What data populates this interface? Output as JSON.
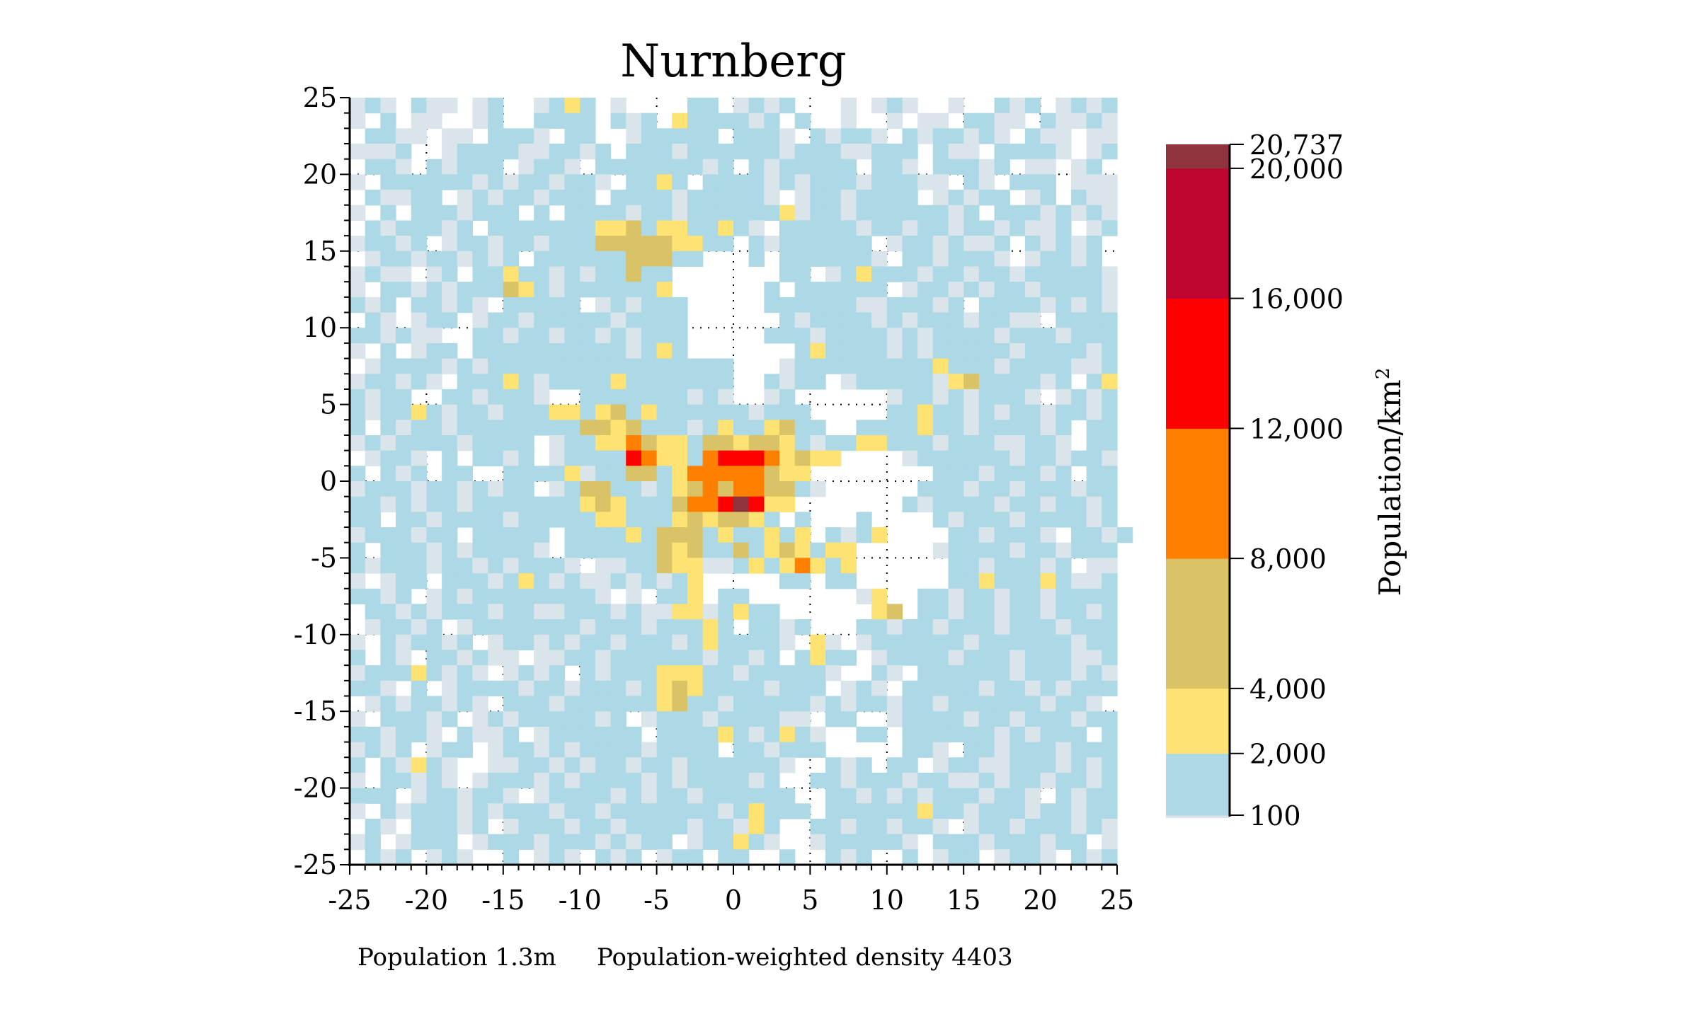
{
  "chart_data": {
    "type": "heatmap",
    "title": "Nurnberg",
    "xlim": [
      -25,
      25
    ],
    "ylim": [
      -25,
      25
    ],
    "xticks": [
      -25,
      -20,
      -15,
      -10,
      -5,
      0,
      5,
      10,
      15,
      20,
      25
    ],
    "yticks": [
      25,
      20,
      15,
      10,
      5,
      0,
      -5,
      -10,
      -15,
      -20,
      -25
    ],
    "grid": "dotted, every 5",
    "colorbar": {
      "label": "Population/km",
      "label_superscript": "2",
      "placement": "right",
      "min": 100,
      "max": 20737,
      "ticks": [
        "20,737",
        "20,000",
        "16,000",
        "12,000",
        "8,000",
        "4,000",
        "2,000",
        "100"
      ],
      "tick_values": [
        20737,
        20000,
        16000,
        12000,
        8000,
        4000,
        2000,
        100
      ]
    },
    "levels": [
      {
        "code": ".",
        "range": "none",
        "color": "#ffffff"
      },
      {
        "code": "g",
        "range": "<100",
        "color": "#d9e5ea"
      },
      {
        "code": "b",
        "range": "100-2000",
        "color": "#add8e6",
        "from": 100,
        "to": 2000
      },
      {
        "code": "y",
        "range": "2000-4000",
        "color": "#fee272",
        "from": 2000,
        "to": 4000
      },
      {
        "code": "k",
        "range": "4000-8000",
        "color": "#d9c366",
        "from": 4000,
        "to": 8000
      },
      {
        "code": "o",
        "range": "8000-12000",
        "color": "#ff8000",
        "from": 8000,
        "to": 12000
      },
      {
        "code": "r",
        "range": "12000-16000",
        "color": "#ff0000",
        "from": 12000,
        "to": 16000
      },
      {
        "code": "c",
        "range": "16000-20000",
        "color": "#bf0633",
        "from": 16000,
        "to": 20000
      },
      {
        "code": "d",
        "range": "20000-20737",
        "color": "#8f333c",
        "from": 20000,
        "to": 20737
      }
    ],
    "rows_top_to_bottom": [
      "gbg.bgg.gb..gbyb.g....bb.gbgb...g.gbg..g..bgb.gbgb",
      "g.b.gg..gb..bbbb.bgb.ybbbbgb.b..g..g.gg.bbgg.bggbg",
      ".bbgg.gg.bbbg.bb..gbbbbb.bbbg.bgbbg.bgbbgbg.bgg.gg",
      "gggb..gbbbbggbbgb.bbbgbbbbbbgbbbggbbb.bgg.bbbbg.gb",
      ".bbg.bgbbb.gbbg.bbbbbbbgb.bgbbbbb.bbg.bbbgb.gg.gb.",
      "g.bbbbbbgbgbbgbbg.bbyb.bbbbgbgbbbgbbbgg.bg.bbb.ggg",
      ".bggbb.gbgbbgbbb.bbbbgbbbbbg.gbbgbbbb.gbgbb.gb.bgg",
      "g.b.bbbgbbb.b.bbbbgbbgbbbbbbygbbgbbbbbbgb.bbbgbgbg",
      ".bgbbbgb.bbbbbbbyykbyybbybg.bbbbbgbbgbbgbbgbggb.gb",
      "gbbgb.gbbgbbgbbbkkkkkyybb.bgbbbbbb.gbbgbggb.bgbgb.",
      ".gbbgbbgbgb.bbbbbbkkkbb...b.bbbbbbg.bbgbbbg.gbbgb.",
      "gbgg.gb.bbybbgbgbbkbb.......bb.gbybbbgbbgbbgbbbbbg",
      "g.bbgbgbbbkybgbbbbbby......b.bbbbbb.gbbgbgbbgbbbbg",
      "bgb.bbgbg.bbbbb.gbgbbb.....bbbbbbggbbbgb.bbbbgbgbg",
      ".bg.gbb.gbbgbbbbbgbbbb......bgbbbbgbgbbbgbbgg.bbbb",
      "bbgbgg..bbgbbgbbgbgbbb.....bbbgbbbbgbgbbbbgbbbgbbb",
      "g.b.gbb.bbbbbbbbbbgbyb.......bybbbbgbgbbbbbgbbbbgb",
      ".gbbbbgbgbbbbbbbbbbbbbbbb...gbbbbbbbbbybbbgbbbbggb",
      "gbbgbg.bbbybgbbbbybbbbbbb..bgbb.gbbbbbgykbbbbgb.by",
      "bgbb..bbgbbbg..bbbbbbbgbg..gb......gbbgbgbbbg.gbgb",
      "bgbbybgbbgbbbyybykbybbbbbbgbbb.....bbybbgbgbbgbbgb",
      "b.bgbbgbbbbbbbbkkykbbbgbybbykbb..bbbbybbgbbbbgb.bb",
      "gbgbbbbgbbbb.gbbyyokyybkkykkybgbbyybbbgbbbggbbg.bb",
      ".gbbg.b.bbgb.gbbbbroyyborrroykyy....gbbbbbbgbbgbbg",
      "b.bgb.bb..bbbbygbbkkbyoooookyy........bbbgbbbgb.bb",
      "gbbbgbbgbgbb.gbkkbbgbykokookkbg......bbbgbbgbbbgbb",
      "bbgbgbbgbbbbbbbykybbbkoordryy.......bgbbbbgbbgbbgb",
      "bb.bbgbbbbgbbbbbyybbbykykkyb.b...b....bgbbbgbbbbgb",
      "gbbbgbb.bbbbb.bbbbybkkkbybbyby.bgby....bbgbbbg.bbgb",
      "b.bbbgbgbbbbg.bbbbbbkykbbkbykybyy.....gbbbbgbbgbbb",
      "bgbbbgbbgbgbbbg.ggbbkyyggbybyoyby......bbgbbbgb.gg",
      "g.gbb.bbbgbybgbggbgbgby.....bb.bb......bbybbbybggb",
      "bbgb.gbgbbbbbbbbg.g.bby.bb.......gy..bbgbbgbbgbbbb",
      ".bbgbgbbbgbbggbbbgbggyygbybb......yk.bbgbbgbbgbbgb",
      ".gbbgb.gbbbbbbbgbbbgbbbyb.bbgb...bbgbbgbbbgbbbgbbb",
      "g.bgbbgb.gbbgbgbbgbbbgbybbbbg.yg.gbbbbbbgbbbbbbgbb",
      "b.bg.bbgbgg.ggbbgbbbbbbgbbgb.bybb.gbbbbgbbbgbbbggb",
      "gbbbybgbg.gbgb.bgbbbyyybbgbbbbbg..bg.bbbbbbgbbbgbg",
      "bbg.b.gbbbbgbbgbbbgbykybbbbgbbb.gbg.bbbbbgbbgbgbbb",
      ".gbgbbgbg.bbbgbbbbbbykbbgbbbbbgbgbbgbbgbbbbbbgbbg.",
      "g.bbbgb.gbgbbbbbgb.gbbbgbbbbgg.bb..gbbbbgbbgbbbgbb",
      "bbgbbg.bggb.gbbbbbb.bbbbybgbybg..bb.bbbbbbgbgbbb.b",
      "gbgb.gbb.gbbgbgbbbbgbbbb.bbgbbb.....bbg.bbgbbbgbbb",
      "b.bgybg..ggbbgbgbbgbbgbbbbbbg..bgb.bb.gbbggbbbgbgb",
      "g.bbgbg.gbbbgbgbbbbgbgbbbbgb..bbgbbbgbbggbgbbgbbgb",
      "bbb.gbbgbbg.gbbbbgbgbbgbbbbbb..bbgbgbgbbbgbbg.bgbb",
      "g.bgbbbgbgbbbgbbgbbbbbbbgbybbb.bbbbbbybbgbbbgbbgbb",
      ".bg.bbbgb.gbbbgbbgbbbbgbbgyb..bbgbbgbbg.gbbgbbbgbg",
      "gb.gbbb.gbbbgbbbgbgbb.gbbybg..gbbbbbg.bbbgbbbgbb.g",
      ".bgb.gbg..b.gbg.bgb.gbb.bb..b..bgb..b.gbb.gbbg.bgb"
    ]
  },
  "footer": {
    "population": "Population 1.3m",
    "weighted_density": "Population-weighted density 4403"
  }
}
